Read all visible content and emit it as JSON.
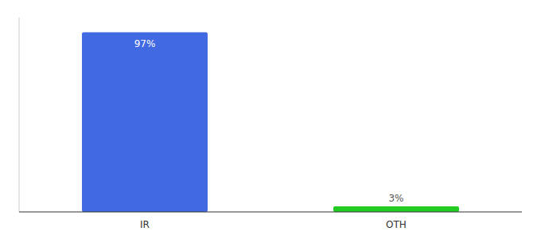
{
  "chart_data": {
    "type": "bar",
    "categories": [
      "IR",
      "OTH"
    ],
    "values": [
      97,
      3
    ],
    "value_labels": [
      "97%",
      "3%"
    ],
    "data_labels": true,
    "colors": [
      "#4169e1",
      "#22cc22"
    ],
    "ylim": [
      0,
      105
    ],
    "grid": false,
    "tick_labels": "x"
  }
}
